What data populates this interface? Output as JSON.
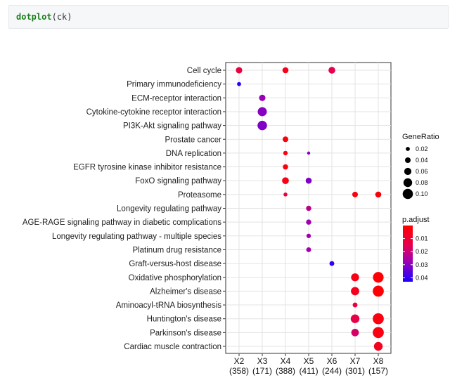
{
  "code": {
    "function": "dotplot",
    "argument": "ck"
  },
  "chart_data": {
    "type": "scatter",
    "subtype": "dotplot",
    "title": "",
    "xlabel": "",
    "ylabel": "",
    "clusters": [
      "X2",
      "X3",
      "X4",
      "X5",
      "X6",
      "X7",
      "X8"
    ],
    "cluster_counts": [
      "(358)",
      "(171)",
      "(388)",
      "(411)",
      "(244)",
      "(301)",
      "(157)"
    ],
    "terms": [
      "Cell cycle",
      "Primary immunodeficiency",
      "ECM-receptor interaction",
      "Cytokine-cytokine receptor interaction",
      "PI3K-Akt signaling pathway",
      "Prostate cancer",
      "DNA replication",
      "EGFR tyrosine kinase inhibitor resistance",
      "FoxO signaling pathway",
      "Proteasome",
      "Longevity regulating pathway",
      "AGE-RAGE signaling pathway in diabetic complications",
      "Longevity regulating pathway - multiple species",
      "Platinum drug resistance",
      "Graft-versus-host disease",
      "Oxidative phosphorylation",
      "Alzheimer's disease",
      "Aminoacyl-tRNA biosynthesis",
      "Huntington's disease",
      "Parkinson's disease",
      "Cardiac muscle contraction"
    ],
    "points": [
      {
        "term": "Cell cycle",
        "cluster": "X2",
        "gene_ratio": 0.05,
        "p_adjust": 0.012
      },
      {
        "term": "Cell cycle",
        "cluster": "X4",
        "gene_ratio": 0.045,
        "p_adjust": 0.005
      },
      {
        "term": "Cell cycle",
        "cluster": "X6",
        "gene_ratio": 0.055,
        "p_adjust": 0.015
      },
      {
        "term": "Primary immunodeficiency",
        "cluster": "X2",
        "gene_ratio": 0.02,
        "p_adjust": 0.041
      },
      {
        "term": "ECM-receptor interaction",
        "cluster": "X3",
        "gene_ratio": 0.05,
        "p_adjust": 0.028
      },
      {
        "term": "Cytokine-cytokine receptor interaction",
        "cluster": "X3",
        "gene_ratio": 0.085,
        "p_adjust": 0.03
      },
      {
        "term": "PI3K-Akt signaling pathway",
        "cluster": "X3",
        "gene_ratio": 0.09,
        "p_adjust": 0.031
      },
      {
        "term": "Prostate cancer",
        "cluster": "X4",
        "gene_ratio": 0.04,
        "p_adjust": 0.002
      },
      {
        "term": "DNA replication",
        "cluster": "X4",
        "gene_ratio": 0.025,
        "p_adjust": 0.003
      },
      {
        "term": "DNA replication",
        "cluster": "X5",
        "gene_ratio": 0.008,
        "p_adjust": 0.03
      },
      {
        "term": "EGFR tyrosine kinase inhibitor resistance",
        "cluster": "X4",
        "gene_ratio": 0.035,
        "p_adjust": 0.002
      },
      {
        "term": "FoxO signaling pathway",
        "cluster": "X4",
        "gene_ratio": 0.055,
        "p_adjust": 0.004
      },
      {
        "term": "FoxO signaling pathway",
        "cluster": "X5",
        "gene_ratio": 0.045,
        "p_adjust": 0.031
      },
      {
        "term": "Proteasome",
        "cluster": "X4",
        "gene_ratio": 0.018,
        "p_adjust": 0.012
      },
      {
        "term": "Proteasome",
        "cluster": "X7",
        "gene_ratio": 0.04,
        "p_adjust": 0.003
      },
      {
        "term": "Proteasome",
        "cluster": "X8",
        "gene_ratio": 0.045,
        "p_adjust": 0.002
      },
      {
        "term": "Longevity regulating pathway",
        "cluster": "X5",
        "gene_ratio": 0.035,
        "p_adjust": 0.022
      },
      {
        "term": "AGE-RAGE signaling pathway in diabetic complications",
        "cluster": "X5",
        "gene_ratio": 0.035,
        "p_adjust": 0.027
      },
      {
        "term": "Longevity regulating pathway - multiple species",
        "cluster": "X5",
        "gene_ratio": 0.025,
        "p_adjust": 0.027
      },
      {
        "term": "Platinum drug resistance",
        "cluster": "X5",
        "gene_ratio": 0.03,
        "p_adjust": 0.027
      },
      {
        "term": "Graft-versus-host disease",
        "cluster": "X6",
        "gene_ratio": 0.03,
        "p_adjust": 0.04
      },
      {
        "term": "Oxidative phosphorylation",
        "cluster": "X7",
        "gene_ratio": 0.07,
        "p_adjust": 0.004
      },
      {
        "term": "Oxidative phosphorylation",
        "cluster": "X8",
        "gene_ratio": 0.105,
        "p_adjust": 0.001
      },
      {
        "term": "Alzheimer's disease",
        "cluster": "X7",
        "gene_ratio": 0.075,
        "p_adjust": 0.006
      },
      {
        "term": "Alzheimer's disease",
        "cluster": "X8",
        "gene_ratio": 0.11,
        "p_adjust": 0.001
      },
      {
        "term": "Aminoacyl-tRNA biosynthesis",
        "cluster": "X7",
        "gene_ratio": 0.03,
        "p_adjust": 0.012
      },
      {
        "term": "Huntington's disease",
        "cluster": "X7",
        "gene_ratio": 0.08,
        "p_adjust": 0.014
      },
      {
        "term": "Huntington's disease",
        "cluster": "X8",
        "gene_ratio": 0.11,
        "p_adjust": 0.003
      },
      {
        "term": "Parkinson's disease",
        "cluster": "X7",
        "gene_ratio": 0.065,
        "p_adjust": 0.018
      },
      {
        "term": "Parkinson's disease",
        "cluster": "X8",
        "gene_ratio": 0.11,
        "p_adjust": 0.003
      },
      {
        "term": "Cardiac muscle contraction",
        "cluster": "X8",
        "gene_ratio": 0.08,
        "p_adjust": 0.006
      }
    ],
    "size_legend": {
      "title": "GeneRatio",
      "values": [
        0.02,
        0.04,
        0.06,
        0.08,
        0.1
      ],
      "labels": [
        "0.02",
        "0.04",
        "0.06",
        "0.08",
        "0.10"
      ]
    },
    "color_legend": {
      "title": "p.adjust",
      "min": 0.0,
      "max": 0.043,
      "ticks": [
        0.01,
        0.02,
        0.03,
        0.04
      ],
      "labels": [
        "0.01",
        "0.02",
        "0.03",
        "0.04"
      ],
      "low_color": "#ff0000",
      "high_color": "#0000ff"
    },
    "grid": true,
    "legend_position": "right"
  }
}
